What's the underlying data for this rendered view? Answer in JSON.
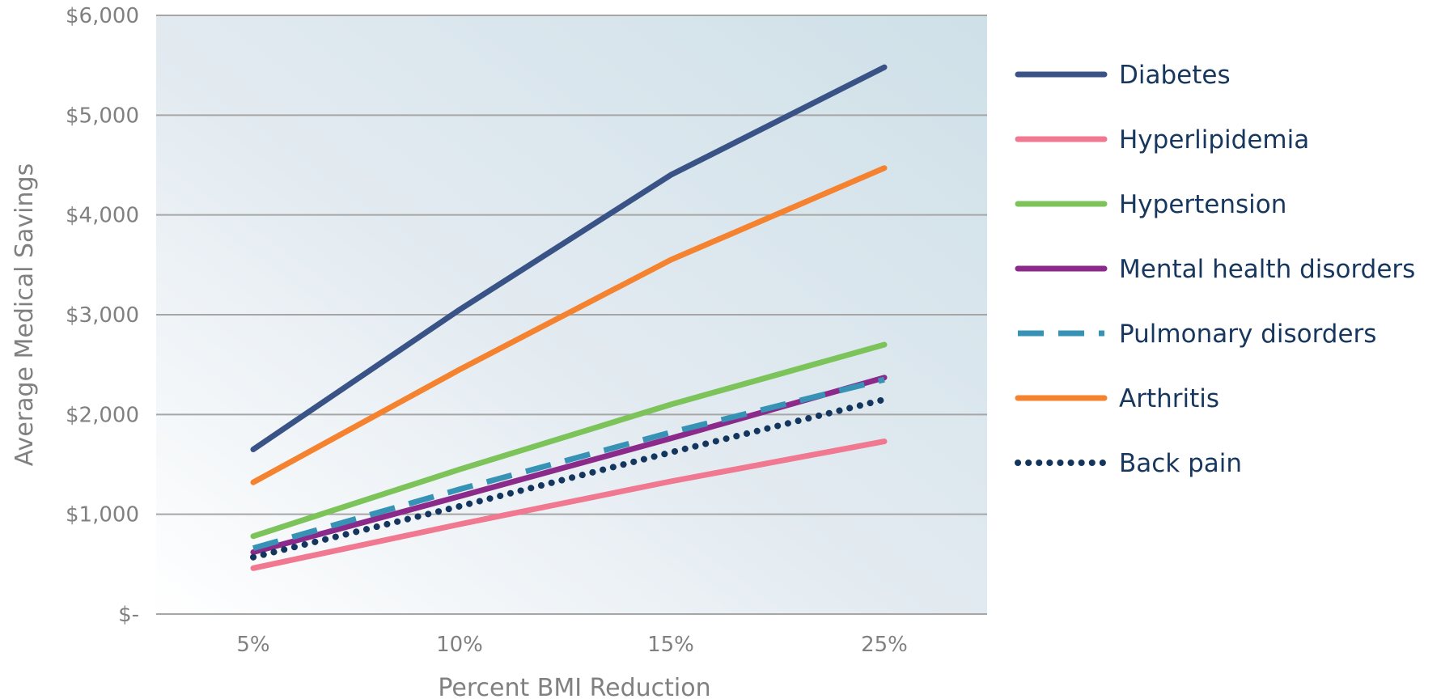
{
  "chart_data": {
    "type": "line",
    "categories": [
      "5%",
      "10%",
      "15%",
      "25%"
    ],
    "xlabel": "Percent BMI Reduction",
    "ylabel": "Average Medical Savings",
    "ylim": [
      0,
      6000
    ],
    "yticks": [
      {
        "value": 0,
        "label": "$-"
      },
      {
        "value": 1000,
        "label": "$1,000"
      },
      {
        "value": 2000,
        "label": "$2,000"
      },
      {
        "value": 3000,
        "label": "$3,000"
      },
      {
        "value": 4000,
        "label": "$4,000"
      },
      {
        "value": 5000,
        "label": "$5,000"
      },
      {
        "value": 6000,
        "label": "$6,000"
      }
    ],
    "grid": true,
    "legend_position": "right",
    "series": [
      {
        "name": "Diabetes",
        "values": [
          1650,
          3050,
          4400,
          5480
        ],
        "color": "#3a5387",
        "style": "solid"
      },
      {
        "name": "Hyperlipidemia",
        "values": [
          460,
          900,
          1330,
          1730
        ],
        "color": "#f07890",
        "style": "solid"
      },
      {
        "name": "Hypertension",
        "values": [
          780,
          1450,
          2100,
          2700
        ],
        "color": "#7cc35a",
        "style": "solid"
      },
      {
        "name": "Mental health disorders",
        "values": [
          620,
          1180,
          1760,
          2370
        ],
        "color": "#8b2a8b",
        "style": "solid"
      },
      {
        "name": "Pulmonary disorders",
        "values": [
          660,
          1250,
          1820,
          2350
        ],
        "color": "#3693b5",
        "style": "dashed"
      },
      {
        "name": "Arthritis",
        "values": [
          1320,
          2450,
          3550,
          4470
        ],
        "color": "#f5822f",
        "style": "solid"
      },
      {
        "name": "Back pain",
        "values": [
          570,
          1080,
          1620,
          2150
        ],
        "color": "#14365e",
        "style": "dotted"
      }
    ]
  }
}
